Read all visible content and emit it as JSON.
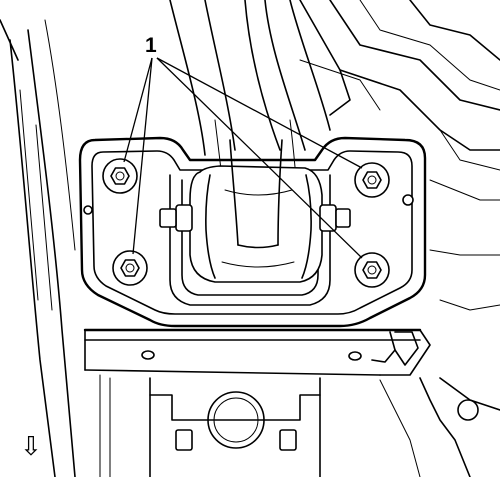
{
  "callout": {
    "number": "1",
    "meaning": "mount bolts"
  },
  "direction_arrow": {
    "glyph": "⇩"
  },
  "colors": {
    "line": "#000000",
    "background": "#ffffff"
  }
}
